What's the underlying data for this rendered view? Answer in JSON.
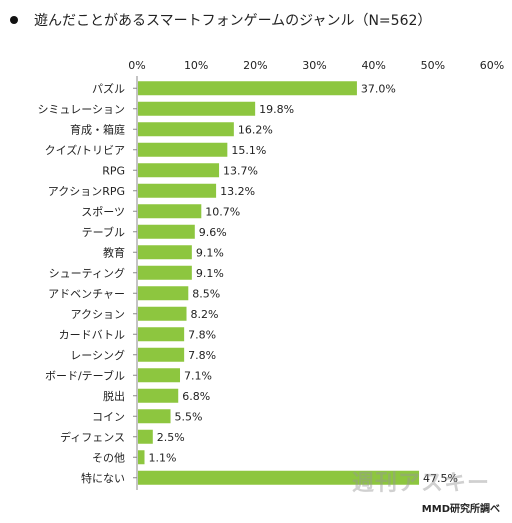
{
  "title": "遊んだことがあるスマートフォンゲームのジャンル（N=562）",
  "source": "MMD研究所調べ",
  "watermark": "週刊アスキー",
  "colors": {
    "bar": "#8dc63f",
    "axis": "#888888",
    "text": "#222222"
  },
  "chart_data": {
    "type": "bar",
    "orientation": "horizontal",
    "title": "遊んだことがあるスマートフォンゲームのジャンル（N=562）",
    "xlim": [
      0,
      60
    ],
    "ticks": [
      "0%",
      "10%",
      "20%",
      "30%",
      "40%",
      "50%",
      "60%"
    ],
    "tick_values": [
      0,
      10,
      20,
      30,
      40,
      50,
      60
    ],
    "categories": [
      "パズル",
      "シミュレーション",
      "育成・箱庭",
      "クイズ/トリビア",
      "RPG",
      "アクションRPG",
      "スポーツ",
      "テーブル",
      "教育",
      "シューティング",
      "アドベンチャー",
      "アクション",
      "カードバトル",
      "レーシング",
      "ボード/テーブル",
      "脱出",
      "コイン",
      "ディフェンス",
      "その他",
      "特にない"
    ],
    "values": [
      37.0,
      19.8,
      16.2,
      15.1,
      13.7,
      13.2,
      10.7,
      9.6,
      9.1,
      9.1,
      8.5,
      8.2,
      7.8,
      7.8,
      7.1,
      6.8,
      5.5,
      2.5,
      1.1,
      47.5
    ],
    "value_labels": [
      "37.0%",
      "19.8%",
      "16.2%",
      "15.1%",
      "13.7%",
      "13.2%",
      "10.7%",
      "9.6%",
      "9.1%",
      "9.1%",
      "8.5%",
      "8.2%",
      "7.8%",
      "7.8%",
      "7.1%",
      "6.8%",
      "5.5%",
      "2.5%",
      "1.1%",
      "47.5%"
    ],
    "grid": false,
    "legend": "none"
  }
}
